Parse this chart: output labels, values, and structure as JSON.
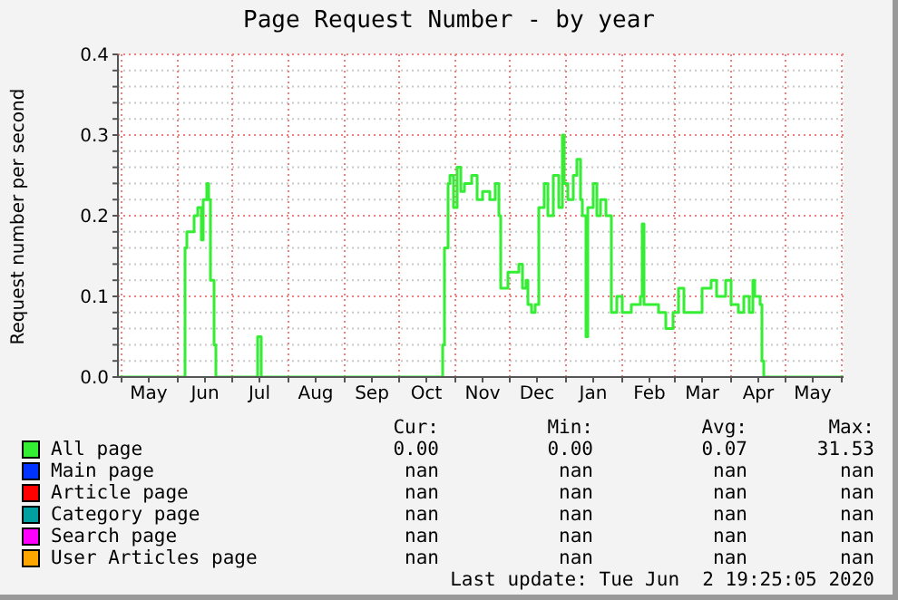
{
  "chart_data": {
    "type": "step",
    "title": "Page Request Number - by year",
    "ylabel": "Request number per second",
    "xlim": [
      "2019-04-29",
      "2020-06-02"
    ],
    "xticks": [
      {
        "value": "2019-05-01",
        "label": null
      },
      {
        "value": "2019-05-16",
        "label": "May"
      },
      {
        "value": "2019-06-01",
        "label": null
      },
      {
        "value": "2019-06-16",
        "label": "Jun"
      },
      {
        "value": "2019-07-01",
        "label": null
      },
      {
        "value": "2019-07-16",
        "label": "Jul"
      },
      {
        "value": "2019-08-01",
        "label": null
      },
      {
        "value": "2019-08-16",
        "label": "Aug"
      },
      {
        "value": "2019-09-01",
        "label": null
      },
      {
        "value": "2019-09-16",
        "label": "Sep"
      },
      {
        "value": "2019-10-01",
        "label": null
      },
      {
        "value": "2019-10-16",
        "label": "Oct"
      },
      {
        "value": "2019-11-01",
        "label": null
      },
      {
        "value": "2019-11-16",
        "label": "Nov"
      },
      {
        "value": "2019-12-01",
        "label": null
      },
      {
        "value": "2019-12-16",
        "label": "Dec"
      },
      {
        "value": "2020-01-01",
        "label": null
      },
      {
        "value": "2020-01-16",
        "label": "Jan"
      },
      {
        "value": "2020-02-01",
        "label": null
      },
      {
        "value": "2020-02-16",
        "label": "Feb"
      },
      {
        "value": "2020-03-01",
        "label": null
      },
      {
        "value": "2020-03-16",
        "label": "Mar"
      },
      {
        "value": "2020-04-01",
        "label": null
      },
      {
        "value": "2020-04-16",
        "label": "Apr"
      },
      {
        "value": "2020-05-01",
        "label": null
      },
      {
        "value": "2020-05-16",
        "label": "May"
      },
      {
        "value": "2020-06-01",
        "label": null
      }
    ],
    "ylim": [
      0,
      0.4
    ],
    "yticks": [
      {
        "value": 0,
        "label": "0.0"
      },
      {
        "value": 0.02,
        "label": null
      },
      {
        "value": 0.04,
        "label": null
      },
      {
        "value": 0.06,
        "label": null
      },
      {
        "value": 0.08,
        "label": null
      },
      {
        "value": 0.1,
        "label": "0.1"
      },
      {
        "value": 0.12,
        "label": null
      },
      {
        "value": 0.14,
        "label": null
      },
      {
        "value": 0.16,
        "label": null
      },
      {
        "value": 0.18,
        "label": null
      },
      {
        "value": 0.2,
        "label": "0.2"
      },
      {
        "value": 0.22,
        "label": null
      },
      {
        "value": 0.24,
        "label": null
      },
      {
        "value": 0.26,
        "label": null
      },
      {
        "value": 0.28,
        "label": null
      },
      {
        "value": 0.3,
        "label": "0.3"
      },
      {
        "value": 0.32,
        "label": null
      },
      {
        "value": 0.34,
        "label": null
      },
      {
        "value": 0.36,
        "label": null
      },
      {
        "value": 0.38,
        "label": null
      },
      {
        "value": 0.4,
        "label": "0.4"
      }
    ],
    "grid": true,
    "legend": "bottom",
    "marker": "none",
    "line_style": "solid",
    "series": [
      {
        "name": "All page",
        "color": "#33ee33",
        "x": [
          "2019-04-29",
          "2019-06-05",
          "2019-06-06",
          "2019-06-10",
          "2019-06-12",
          "2019-06-14",
          "2019-06-15",
          "2019-06-17",
          "2019-06-18",
          "2019-06-19",
          "2019-06-21",
          "2019-06-22",
          "2019-07-15",
          "2019-07-17",
          "2019-10-25",
          "2019-10-26",
          "2019-10-28",
          "2019-10-29",
          "2019-10-31",
          "2019-11-02",
          "2019-11-04",
          "2019-11-06",
          "2019-11-10",
          "2019-11-13",
          "2019-11-16",
          "2019-11-20",
          "2019-11-23",
          "2019-11-25",
          "2019-11-26",
          "2019-11-30",
          "2019-12-06",
          "2019-12-08",
          "2019-12-10",
          "2019-12-11",
          "2019-12-13",
          "2019-12-15",
          "2019-12-17",
          "2019-12-20",
          "2019-12-22",
          "2019-12-25",
          "2019-12-28",
          "2019-12-30",
          "2019-12-31",
          "2020-01-02",
          "2020-01-05",
          "2020-01-07",
          "2020-01-09",
          "2020-01-10",
          "2020-01-12",
          "2020-01-13",
          "2020-01-16",
          "2020-01-18",
          "2020-01-20",
          "2020-01-23",
          "2020-01-26",
          "2020-01-29",
          "2020-02-01",
          "2020-02-06",
          "2020-02-11",
          "2020-02-12",
          "2020-02-13",
          "2020-02-17",
          "2020-02-21",
          "2020-02-25",
          "2020-02-29",
          "2020-03-03",
          "2020-03-06",
          "2020-03-11",
          "2020-03-16",
          "2020-03-21",
          "2020-03-24",
          "2020-03-29",
          "2020-04-01",
          "2020-04-05",
          "2020-04-08",
          "2020-04-11",
          "2020-04-13",
          "2020-04-14",
          "2020-04-17",
          "2020-04-18",
          "2020-04-19",
          "2020-06-02"
        ],
        "values": [
          0,
          0.16,
          0.18,
          0.2,
          0.21,
          0.17,
          0.22,
          0.24,
          0.22,
          0.12,
          0.04,
          0,
          0.05,
          0,
          0.04,
          0.16,
          0.24,
          0.25,
          0.21,
          0.26,
          0.23,
          0.24,
          0.25,
          0.22,
          0.23,
          0.22,
          0.24,
          0.2,
          0.11,
          0.13,
          0.14,
          0.11,
          0.12,
          0.09,
          0.08,
          0.09,
          0.21,
          0.24,
          0.2,
          0.25,
          0.21,
          0.3,
          0.24,
          0.22,
          0.25,
          0.27,
          0.22,
          0.2,
          0.05,
          0.21,
          0.24,
          0.2,
          0.22,
          0.2,
          0.08,
          0.1,
          0.08,
          0.09,
          0.1,
          0.19,
          0.09,
          0.09,
          0.08,
          0.06,
          0.08,
          0.11,
          0.08,
          0.08,
          0.11,
          0.12,
          0.1,
          0.12,
          0.09,
          0.08,
          0.1,
          0.08,
          0.12,
          0.1,
          0.09,
          0.02,
          0,
          0
        ]
      },
      {
        "name": "Main page",
        "color": "#0033ff"
      },
      {
        "name": "Article page",
        "color": "#ff0000"
      },
      {
        "name": "Category page",
        "color": "#00a0a0"
      },
      {
        "name": "Search page",
        "color": "#ff00ff"
      },
      {
        "name": "User Articles page",
        "color": "#ffa500"
      }
    ],
    "annotations": [
      "Cur:",
      "Min:",
      "Avg:",
      "Max:",
      "0.00",
      "0.00",
      "0.07",
      "31.53",
      "nan",
      "nan",
      "nan",
      "nan",
      "nan",
      "nan",
      "nan",
      "nan",
      "nan",
      "nan",
      "nan",
      "nan",
      "nan",
      "nan",
      "nan",
      "nan",
      "nan",
      "nan",
      "nan",
      "nan",
      "Last update: Tue Jun  2 19:25:05 2020"
    ]
  }
}
